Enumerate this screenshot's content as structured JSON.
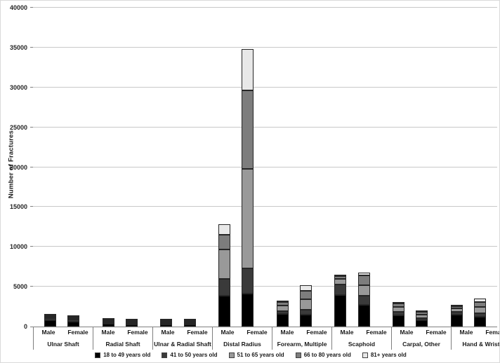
{
  "chart_data": {
    "type": "bar",
    "stacked": true,
    "title": "",
    "xlabel": "",
    "ylabel": "Number of Fractures",
    "ylim": [
      0,
      40000
    ],
    "yticks": [
      0,
      5000,
      10000,
      15000,
      20000,
      25000,
      30000,
      35000,
      40000
    ],
    "grid": true,
    "legend_position": "bottom",
    "sex_labels": [
      "Male",
      "Female"
    ],
    "age_groups": [
      {
        "label": "18 to 49 years old",
        "color": "#000000"
      },
      {
        "label": "41 to 50 years old",
        "color": "#3a3a3a"
      },
      {
        "label": "51 to 65 years old",
        "color": "#999999"
      },
      {
        "label": "66 to 80 years old",
        "color": "#7d7d7d"
      },
      {
        "label": "81+ years old",
        "color": "#e8e8e8"
      }
    ],
    "categories": [
      "Ulnar Shaft",
      "Radial Shaft",
      "Ulnar & Radial Shaft",
      "Distal Radius",
      "Forearm, Multiple",
      "Scaphoid",
      "Carpal, Other",
      "Hand & Wrist"
    ],
    "bars": [
      {
        "category": "Ulnar Shaft",
        "sex": "Male",
        "values": [
          800,
          250,
          150,
          70,
          30
        ]
      },
      {
        "category": "Ulnar Shaft",
        "sex": "Female",
        "values": [
          650,
          220,
          150,
          90,
          40
        ]
      },
      {
        "category": "Radial Shaft",
        "sex": "Male",
        "values": [
          350,
          110,
          70,
          40,
          20
        ]
      },
      {
        "category": "Radial Shaft",
        "sex": "Female",
        "values": [
          280,
          100,
          80,
          50,
          20
        ]
      },
      {
        "category": "Ulnar & Radial Shaft",
        "sex": "Male",
        "values": [
          280,
          60,
          40,
          20,
          10
        ]
      },
      {
        "category": "Ulnar & Radial Shaft",
        "sex": "Female",
        "values": [
          260,
          80,
          60,
          30,
          10
        ]
      },
      {
        "category": "Distal Radius",
        "sex": "Male",
        "values": [
          3900,
          2100,
          3700,
          1800,
          1300
        ]
      },
      {
        "category": "Distal Radius",
        "sex": "Female",
        "values": [
          4100,
          3200,
          12500,
          9800,
          5200
        ]
      },
      {
        "category": "Forearm, Multiple",
        "sex": "Male",
        "values": [
          1600,
          350,
          650,
          450,
          250
        ]
      },
      {
        "category": "Forearm, Multiple",
        "sex": "Female",
        "values": [
          1500,
          600,
          1300,
          1100,
          700
        ]
      },
      {
        "category": "Scaphoid",
        "sex": "Male",
        "values": [
          4000,
          1300,
          700,
          350,
          150
        ]
      },
      {
        "category": "Scaphoid",
        "sex": "Female",
        "values": [
          2700,
          1200,
          1300,
          1200,
          400
        ]
      },
      {
        "category": "Carpal, Other",
        "sex": "Male",
        "values": [
          1400,
          450,
          600,
          450,
          200
        ]
      },
      {
        "category": "Carpal, Other",
        "sex": "Female",
        "values": [
          800,
          300,
          400,
          350,
          150
        ]
      },
      {
        "category": "Hand & Wrist",
        "sex": "Male",
        "values": [
          1500,
          350,
          400,
          300,
          100
        ]
      },
      {
        "category": "Hand & Wrist",
        "sex": "Female",
        "values": [
          1200,
          450,
          800,
          650,
          400
        ]
      }
    ]
  }
}
